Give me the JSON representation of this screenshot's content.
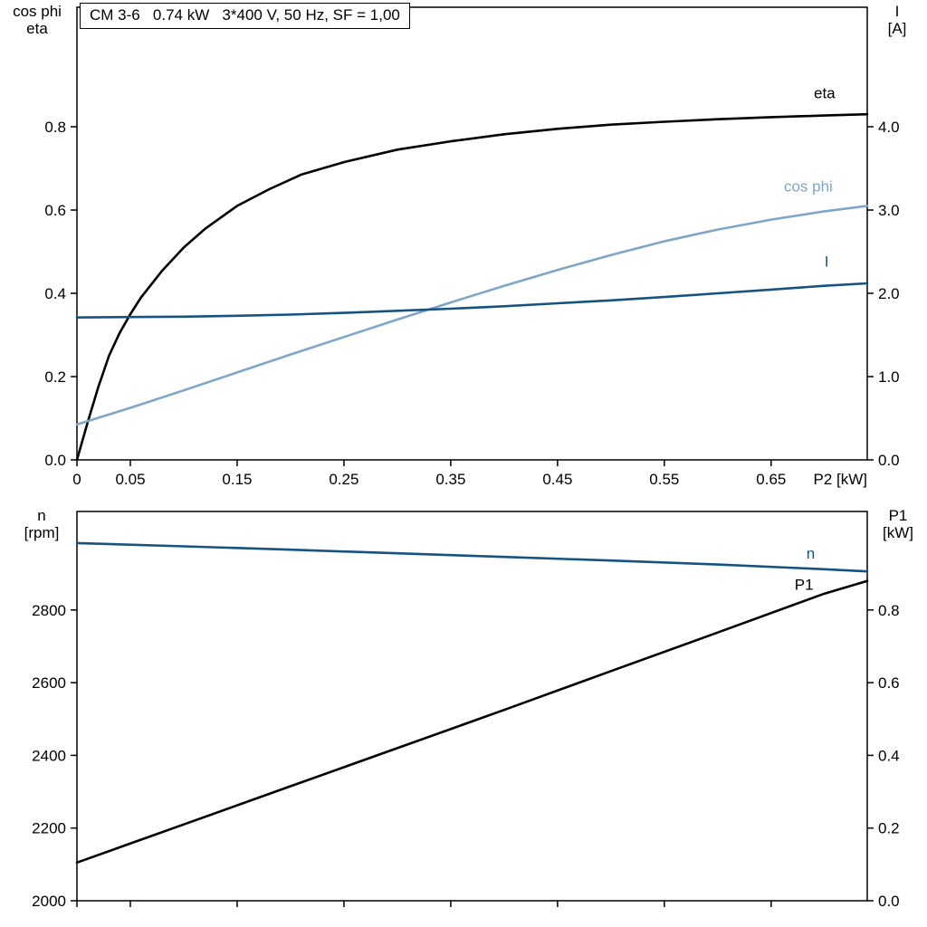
{
  "colors": {
    "black": "#000000",
    "dark_blue": "#175380",
    "light_blue": "#7fa6c6"
  },
  "corner_labels": {
    "top_left": [
      "cos phi",
      "eta"
    ],
    "top_right": [
      "I",
      "[A]"
    ],
    "bottom_left": [
      "n",
      "[rpm]"
    ],
    "bottom_right": [
      "P1",
      "[kW]"
    ]
  },
  "chart_data": [
    {
      "type": "line",
      "title": "CM 3-6   0.74 kW   3*400 V, 50 Hz, SF = 1,00",
      "grid": false,
      "legend": "inline-end-labels",
      "x_axis": {
        "label": "P2 [kW]",
        "min": 0,
        "max": 0.74,
        "ticks": [
          0,
          0.05,
          0.15,
          0.25,
          0.35,
          0.45,
          0.55,
          0.65
        ],
        "tick_labels": [
          "0",
          "0.05",
          "0.15",
          "0.25",
          "0.35",
          "0.45",
          "0.55",
          "0.65"
        ],
        "show_tick_labels": true
      },
      "y_left": {
        "label": "cos phi / eta",
        "min": 0,
        "max": 1.087,
        "ticks": [
          0.0,
          0.2,
          0.4,
          0.6,
          0.8
        ],
        "tick_labels": [
          "0.0",
          "0.2",
          "0.4",
          "0.6",
          "0.8"
        ]
      },
      "y_right": {
        "label": "I [A]",
        "min": 0,
        "max": 5.435,
        "ticks": [
          0.0,
          1.0,
          2.0,
          3.0,
          4.0
        ],
        "tick_labels": [
          "0.0",
          "1.0",
          "2.0",
          "3.0",
          "4.0"
        ]
      },
      "series": [
        {
          "name": "eta",
          "axis": "left",
          "color": "#000000",
          "width": 2.6,
          "label_pos": {
            "x": 0.69,
            "y": 0.868
          },
          "points": [
            [
              0,
              0
            ],
            [
              0.005,
              0.045
            ],
            [
              0.01,
              0.09
            ],
            [
              0.02,
              0.175
            ],
            [
              0.03,
              0.25
            ],
            [
              0.04,
              0.305
            ],
            [
              0.05,
              0.35
            ],
            [
              0.06,
              0.39
            ],
            [
              0.08,
              0.455
            ],
            [
              0.1,
              0.51
            ],
            [
              0.12,
              0.555
            ],
            [
              0.15,
              0.61
            ],
            [
              0.18,
              0.65
            ],
            [
              0.21,
              0.685
            ],
            [
              0.25,
              0.715
            ],
            [
              0.3,
              0.745
            ],
            [
              0.35,
              0.765
            ],
            [
              0.4,
              0.782
            ],
            [
              0.45,
              0.795
            ],
            [
              0.5,
              0.805
            ],
            [
              0.55,
              0.812
            ],
            [
              0.6,
              0.818
            ],
            [
              0.65,
              0.823
            ],
            [
              0.7,
              0.827
            ],
            [
              0.74,
              0.83
            ]
          ]
        },
        {
          "name": "cos phi",
          "axis": "left",
          "color": "#7fa6c6",
          "width": 2.6,
          "label_pos": {
            "x": 0.662,
            "y": 0.645
          },
          "points": [
            [
              0,
              0.085
            ],
            [
              0.05,
              0.125
            ],
            [
              0.1,
              0.167
            ],
            [
              0.15,
              0.21
            ],
            [
              0.2,
              0.253
            ],
            [
              0.25,
              0.295
            ],
            [
              0.3,
              0.337
            ],
            [
              0.35,
              0.378
            ],
            [
              0.4,
              0.418
            ],
            [
              0.45,
              0.456
            ],
            [
              0.5,
              0.492
            ],
            [
              0.55,
              0.525
            ],
            [
              0.6,
              0.553
            ],
            [
              0.65,
              0.577
            ],
            [
              0.7,
              0.597
            ],
            [
              0.74,
              0.61
            ]
          ]
        },
        {
          "name": "I",
          "axis": "right",
          "color": "#175380",
          "width": 2.6,
          "label_pos": {
            "x": 0.7,
            "y": 2.32
          },
          "points": [
            [
              0,
              1.71
            ],
            [
              0.05,
              1.715
            ],
            [
              0.1,
              1.72
            ],
            [
              0.15,
              1.73
            ],
            [
              0.2,
              1.745
            ],
            [
              0.25,
              1.765
            ],
            [
              0.3,
              1.79
            ],
            [
              0.35,
              1.815
            ],
            [
              0.4,
              1.845
            ],
            [
              0.45,
              1.88
            ],
            [
              0.5,
              1.915
            ],
            [
              0.55,
              1.955
            ],
            [
              0.6,
              2.0
            ],
            [
              0.65,
              2.045
            ],
            [
              0.7,
              2.09
            ],
            [
              0.74,
              2.12
            ]
          ]
        }
      ]
    },
    {
      "type": "line",
      "title": "",
      "grid": false,
      "legend": "inline-end-labels",
      "x_axis": {
        "label": "",
        "min": 0,
        "max": 0.74,
        "ticks": [
          0,
          0.05,
          0.15,
          0.25,
          0.35,
          0.45,
          0.55,
          0.65
        ],
        "tick_labels": [
          "",
          "",
          "",
          "",
          "",
          "",
          "",
          ""
        ],
        "show_tick_labels": false
      },
      "y_left": {
        "label": "n [rpm]",
        "min": 2000,
        "max": 3071,
        "ticks": [
          2000,
          2200,
          2400,
          2600,
          2800
        ],
        "tick_labels": [
          "2000",
          "2200",
          "2400",
          "2600",
          "2800"
        ]
      },
      "y_right": {
        "label": "P1 [kW]",
        "min": 0,
        "max": 1.071,
        "ticks": [
          0.0,
          0.2,
          0.4,
          0.6,
          0.8
        ],
        "tick_labels": [
          "0.0",
          "0.2",
          "0.4",
          "0.6",
          "0.8"
        ]
      },
      "series": [
        {
          "name": "n",
          "axis": "left",
          "color": "#175380",
          "width": 2.6,
          "label_pos": {
            "x": 0.683,
            "y": 2942
          },
          "points": [
            [
              0,
              2984
            ],
            [
              0.1,
              2975
            ],
            [
              0.2,
              2966
            ],
            [
              0.3,
              2956
            ],
            [
              0.4,
              2946
            ],
            [
              0.5,
              2936
            ],
            [
              0.6,
              2925
            ],
            [
              0.7,
              2912
            ],
            [
              0.74,
              2906
            ]
          ]
        },
        {
          "name": "P1",
          "axis": "right",
          "color": "#000000",
          "width": 2.6,
          "label_pos": {
            "x": 0.672,
            "y": 0.855
          },
          "points": [
            [
              0,
              0.105
            ],
            [
              0.1,
              0.21
            ],
            [
              0.2,
              0.315
            ],
            [
              0.3,
              0.42
            ],
            [
              0.4,
              0.525
            ],
            [
              0.5,
              0.632
            ],
            [
              0.6,
              0.738
            ],
            [
              0.7,
              0.845
            ],
            [
              0.74,
              0.88
            ]
          ]
        }
      ]
    }
  ]
}
